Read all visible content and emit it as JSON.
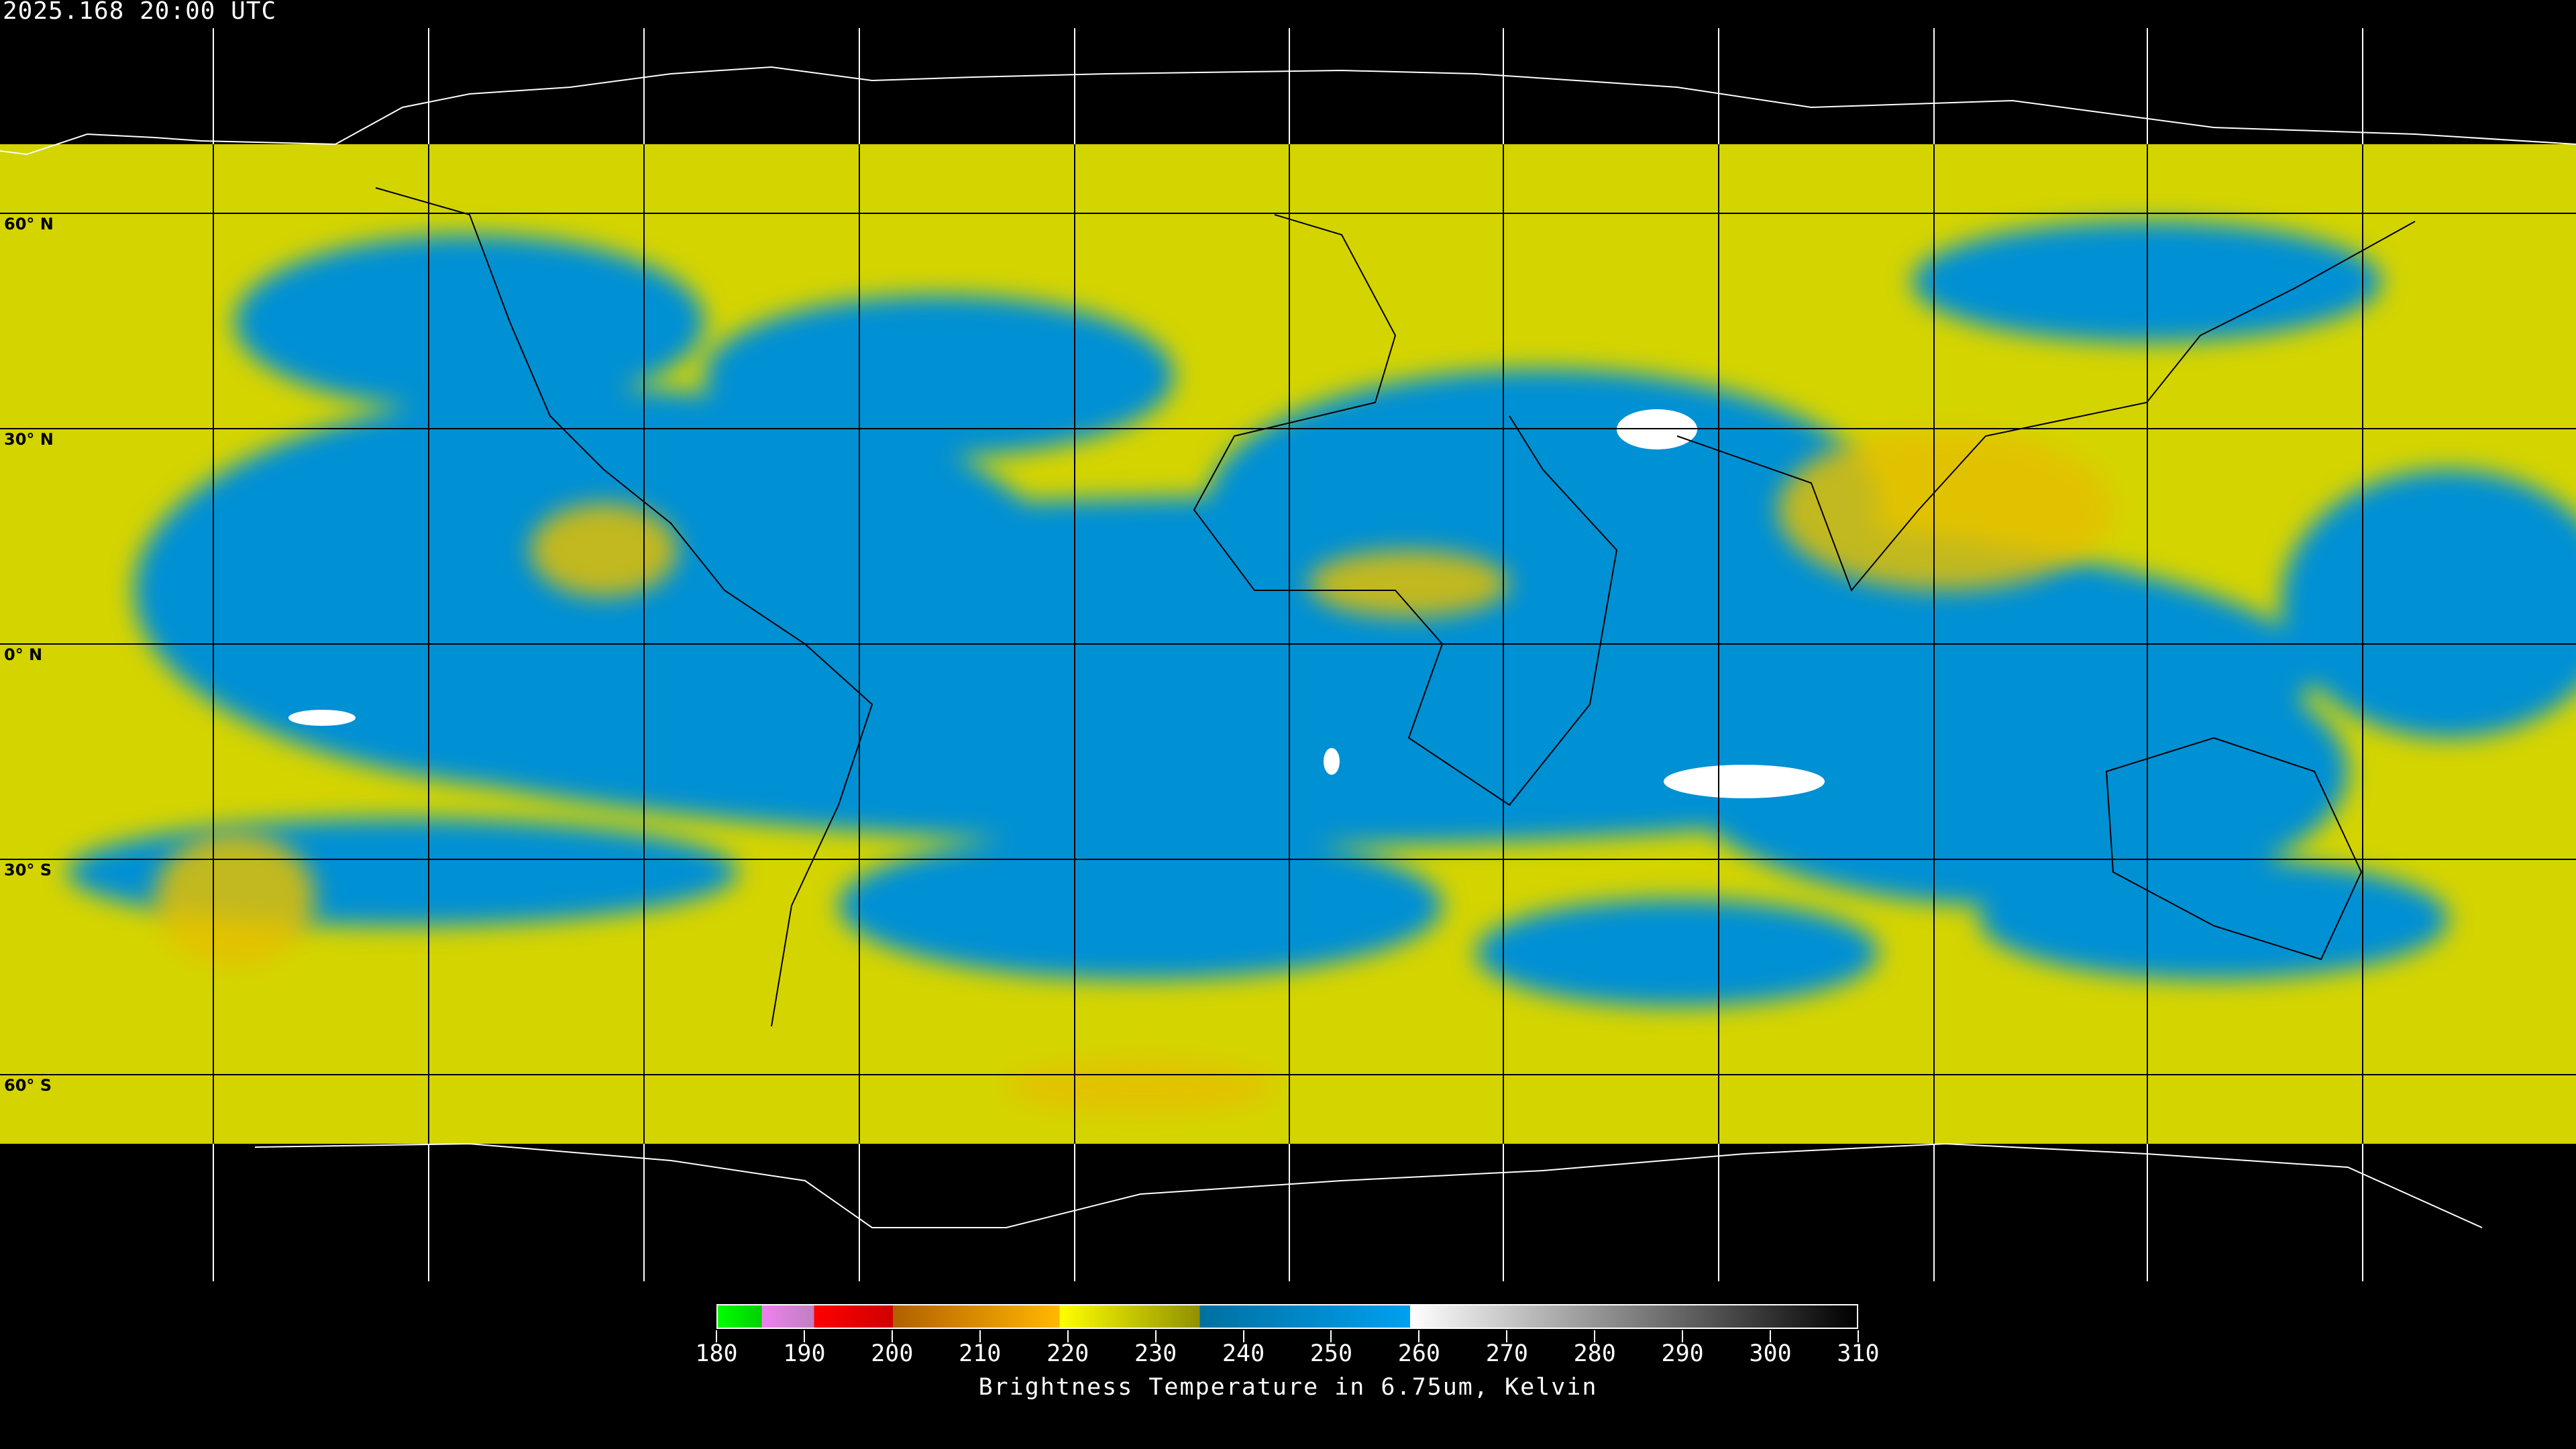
{
  "timestamp": "2025.168 20:00 UTC",
  "latitude_labels": [
    "60° N",
    "30° N",
    "0° N",
    "30° S",
    "60° S"
  ],
  "colorbar": {
    "title": "Brightness Temperature in 6.75um, Kelvin",
    "ticks": [
      "180",
      "190",
      "200",
      "210",
      "220",
      "230",
      "240",
      "250",
      "260",
      "270",
      "280",
      "290",
      "300",
      "310"
    ],
    "range": [
      180,
      310
    ],
    "segments": [
      {
        "from": 180,
        "to": 185,
        "colors": [
          "#00ff00",
          "#00d000"
        ]
      },
      {
        "from": 185,
        "to": 191,
        "colors": [
          "#f080f0",
          "#c080c0"
        ]
      },
      {
        "from": 191,
        "to": 200,
        "colors": [
          "#ff0000",
          "#d00000"
        ]
      },
      {
        "from": 200,
        "to": 219,
        "colors": [
          "#b06000",
          "#ffb800"
        ]
      },
      {
        "from": 219,
        "to": 235,
        "colors": [
          "#ffff00",
          "#909000"
        ]
      },
      {
        "from": 235,
        "to": 259,
        "colors": [
          "#0070a0",
          "#00a0f0"
        ]
      },
      {
        "from": 259,
        "to": 310,
        "colors": [
          "#ffffff",
          "#000000"
        ]
      }
    ]
  },
  "colors": {
    "cold_cloud": "#d8d800",
    "dry_air": "#0090d8",
    "very_dry": "#ffffff",
    "deep_convection": "#e0a000",
    "background": "#000000"
  }
}
